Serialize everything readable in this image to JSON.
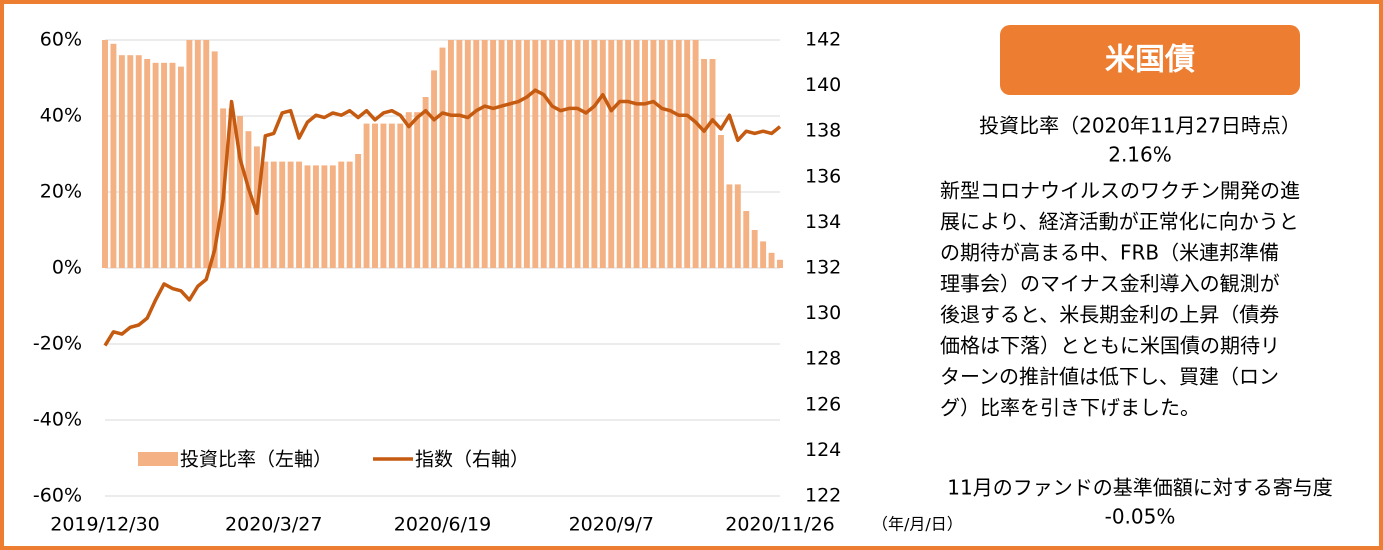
{
  "chart_data": {
    "type": "combo",
    "categories": [
      "2019/12/30",
      null,
      null,
      null,
      null,
      null,
      null,
      null,
      null,
      null,
      null,
      null,
      null,
      null,
      null,
      null,
      null,
      null,
      null,
      null,
      "2020/3/27",
      null,
      null,
      null,
      null,
      null,
      null,
      null,
      null,
      null,
      null,
      null,
      null,
      null,
      null,
      null,
      null,
      null,
      null,
      null,
      "2020/6/19",
      null,
      null,
      null,
      null,
      null,
      null,
      null,
      null,
      null,
      null,
      null,
      null,
      null,
      null,
      null,
      null,
      null,
      null,
      null,
      "2020/9/7",
      null,
      null,
      null,
      null,
      null,
      null,
      null,
      null,
      null,
      null,
      null,
      null,
      null,
      null,
      null,
      null,
      null,
      null,
      null,
      "2020/11/26"
    ],
    "x_unit": "（年/月/日）",
    "series": [
      {
        "name": "投資比率（左軸）",
        "type": "bar",
        "color": "#f4b183",
        "values": [
          60,
          59,
          56,
          56,
          56,
          55,
          54,
          54,
          54,
          53,
          60,
          60,
          60,
          57,
          42,
          42,
          40,
          36,
          32,
          28,
          28,
          28,
          28,
          28,
          27,
          27,
          27,
          27,
          28,
          28,
          30,
          38,
          38,
          38,
          38,
          38,
          41,
          41,
          45,
          52,
          58,
          60,
          60,
          60,
          60,
          60,
          60,
          60,
          60,
          60,
          60,
          60,
          60,
          60,
          60,
          60,
          60,
          60,
          60,
          60,
          60,
          60,
          60,
          60,
          60,
          60,
          60,
          60,
          60,
          60,
          60,
          55,
          55,
          35,
          22,
          22,
          15,
          10,
          7,
          4,
          2.16
        ]
      },
      {
        "name": "指数（右軸）",
        "type": "line",
        "axis": "y2",
        "color": "#c55a11",
        "values": [
          128.6,
          129.2,
          129.1,
          129.4,
          129.5,
          129.8,
          130.6,
          131.3,
          131.1,
          131.0,
          130.6,
          131.2,
          131.5,
          132.8,
          135.0,
          139.3,
          136.8,
          135.5,
          134.4,
          137.8,
          137.9,
          138.8,
          138.9,
          137.7,
          138.4,
          138.7,
          138.6,
          138.8,
          138.7,
          138.9,
          138.6,
          138.9,
          138.5,
          138.8,
          138.9,
          138.7,
          138.2,
          138.6,
          138.9,
          138.5,
          138.8,
          138.7,
          138.7,
          138.6,
          138.9,
          139.1,
          139.0,
          139.1,
          139.2,
          139.3,
          139.5,
          139.8,
          139.6,
          139.1,
          138.9,
          139.0,
          139.0,
          138.8,
          139.1,
          139.6,
          138.9,
          139.3,
          139.3,
          139.2,
          139.2,
          139.3,
          139.0,
          138.9,
          138.7,
          138.7,
          138.4,
          138.0,
          138.5,
          138.1,
          138.7,
          137.6,
          138.0,
          137.9,
          138.0,
          137.9,
          138.2
        ]
      }
    ],
    "ylim": [
      -60,
      60
    ],
    "yticks": [
      {
        "value": -60,
        "label": "-60%"
      },
      {
        "value": -40,
        "label": "-40%"
      },
      {
        "value": -20,
        "label": "-20%"
      },
      {
        "value": 0,
        "label": "0%"
      },
      {
        "value": 20,
        "label": "20%"
      },
      {
        "value": 40,
        "label": "40%"
      },
      {
        "value": 60,
        "label": "60%"
      }
    ],
    "y2lim": [
      122,
      142
    ],
    "y2ticks": [
      122,
      124,
      126,
      128,
      130,
      132,
      134,
      136,
      138,
      140,
      142
    ],
    "grid": true
  },
  "panel": {
    "title": "米国債",
    "ratio_label": "投資比率（2020年11月27日時点）",
    "ratio_value": "2.16%",
    "body": [
      "新型コロナウイルスのワクチン開発の進",
      "展により、経済活動が正常化に向かうと",
      "の期待が高まる中、FRB（米連邦準備",
      "理事会）のマイナス金利導入の観測が",
      "後退すると、米長期金利の上昇（債券",
      "価格は下落）とともに米国債の期待リ",
      "ターンの推計値は低下し、買建（ロン",
      "グ）比率を引き下げました。"
    ],
    "contribution_label": "11月のファンドの基準価額に対する寄与度",
    "contribution_value": "-0.05%"
  }
}
